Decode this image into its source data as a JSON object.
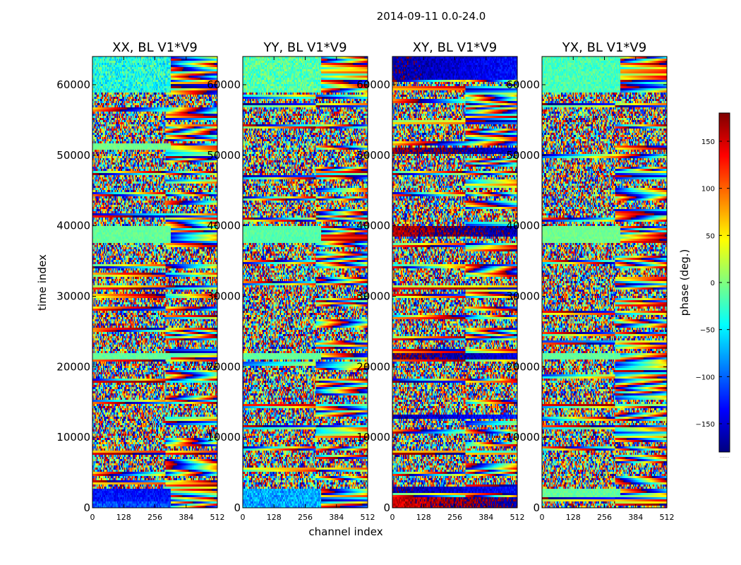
{
  "figure": {
    "title": "2014-09-11 0.0-24.0",
    "xlabel": "channel index",
    "ylabel": "time index",
    "colorbar_label": "phase (deg.)",
    "colorbar_ticks": [
      "150",
      "100",
      "50",
      "0",
      "−50",
      "−100",
      "−150"
    ],
    "colorbar_ellipsis": "......",
    "colormap": "jet",
    "colormap_stops": [
      "#00007f",
      "#0000ff",
      "#007fff",
      "#00ffff",
      "#7fff7f",
      "#ffff00",
      "#ff7f00",
      "#ff0000",
      "#7f0000"
    ]
  },
  "chart_data": [
    {
      "type": "heatmap",
      "title": "XX, BL V1*V9",
      "xlabel": "channel index",
      "ylabel": "time index",
      "xlim": [
        0,
        512
      ],
      "ylim": [
        0,
        64000
      ],
      "xticks": [
        0,
        128,
        256,
        384,
        512
      ],
      "yticks": [
        0,
        10000,
        20000,
        30000,
        40000,
        50000,
        60000
      ],
      "value_range_deg": [
        -180,
        180
      ],
      "bands": [
        {
          "t0": 0,
          "t1": 800,
          "phase": -110,
          "noise": 25
        },
        {
          "t0": 800,
          "t1": 2600,
          "phase": -130,
          "noise": 20
        },
        {
          "t0": 21000,
          "t1": 22000,
          "phase": -10,
          "noise": 10
        },
        {
          "t0": 37500,
          "t1": 40000,
          "phase": -10,
          "noise": 10
        },
        {
          "t0": 50800,
          "t1": 51700,
          "phase": -5,
          "noise": 10
        },
        {
          "t0": 59000,
          "t1": 64000,
          "phase": -35,
          "noise": 40
        }
      ]
    },
    {
      "type": "heatmap",
      "title": "YY, BL V1*V9",
      "xlabel": "channel index",
      "ylabel": "time index",
      "xlim": [
        0,
        512
      ],
      "ylim": [
        0,
        64000
      ],
      "xticks": [
        0,
        128,
        256,
        384,
        512
      ],
      "yticks": [
        0,
        10000,
        20000,
        30000,
        40000,
        50000,
        60000
      ],
      "value_range_deg": [
        -180,
        180
      ],
      "bands": [
        {
          "t0": 0,
          "t1": 2600,
          "phase": -75,
          "noise": 30
        },
        {
          "t0": 21000,
          "t1": 22000,
          "phase": -10,
          "noise": 10
        },
        {
          "t0": 37500,
          "t1": 40000,
          "phase": -15,
          "noise": 12
        },
        {
          "t0": 59000,
          "t1": 64000,
          "phase": -15,
          "noise": 30
        }
      ]
    },
    {
      "type": "heatmap",
      "title": "XY, BL V1*V9",
      "xlabel": "channel index",
      "ylabel": "time index",
      "xlim": [
        0,
        512
      ],
      "ylim": [
        0,
        64000
      ],
      "xticks": [
        0,
        128,
        256,
        384,
        512
      ],
      "yticks": [
        0,
        10000,
        20000,
        30000,
        40000,
        50000,
        60000
      ],
      "value_range_deg": [
        -180,
        180
      ],
      "bands": [
        {
          "t0": 0,
          "t1": 1600,
          "phase": 150,
          "noise": 25
        },
        {
          "t0": 2200,
          "t1": 3000,
          "phase": -170,
          "noise": 20
        },
        {
          "t0": 12500,
          "t1": 13300,
          "phase": -165,
          "noise": 20
        },
        {
          "t0": 21000,
          "t1": 22000,
          "phase": 175,
          "noise": 20
        },
        {
          "t0": 38500,
          "t1": 40000,
          "phase": 160,
          "noise": 20
        },
        {
          "t0": 50300,
          "t1": 51200,
          "phase": 170,
          "noise": 20
        },
        {
          "t0": 60800,
          "t1": 63900,
          "phase": -170,
          "noise": 20
        }
      ]
    },
    {
      "type": "heatmap",
      "title": "YX, BL V1*V9",
      "xlabel": "channel index",
      "ylabel": "time index",
      "xlim": [
        0,
        512
      ],
      "ylim": [
        0,
        64000
      ],
      "xticks": [
        0,
        128,
        256,
        384,
        512
      ],
      "yticks": [
        0,
        10000,
        20000,
        30000,
        40000,
        50000,
        60000
      ],
      "value_range_deg": [
        -180,
        180
      ],
      "bands": [
        {
          "t0": 1500,
          "t1": 2600,
          "phase": -10,
          "noise": 12
        },
        {
          "t0": 21000,
          "t1": 22000,
          "phase": -10,
          "noise": 10
        },
        {
          "t0": 37500,
          "t1": 40000,
          "phase": -5,
          "noise": 10
        },
        {
          "t0": 59000,
          "t1": 64000,
          "phase": -20,
          "noise": 20
        }
      ]
    }
  ]
}
